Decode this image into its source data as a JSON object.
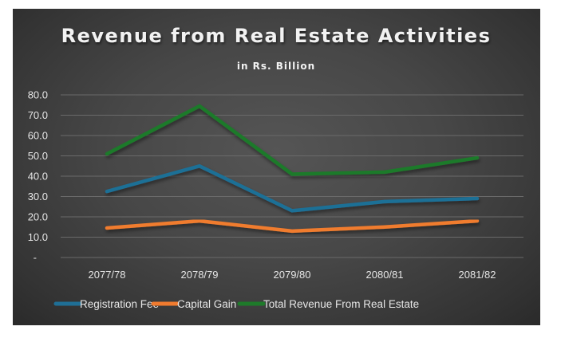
{
  "chart_data": {
    "type": "line",
    "title": "Revenue from Real Estate Activities",
    "subtitle": "in Rs. Billion",
    "xlabel": "",
    "ylabel": "",
    "categories": [
      "2077/78",
      "2078/79",
      "2079/80",
      "2080/81",
      "2081/82"
    ],
    "ylim": [
      0,
      80
    ],
    "yticks": [
      0,
      10,
      20,
      30,
      40,
      50,
      60,
      70,
      80
    ],
    "ytick_labels": [
      "-",
      "10.0",
      "20.0",
      "30.0",
      "40.0",
      "50.0",
      "60.0",
      "70.0",
      "80.0"
    ],
    "grid": true,
    "legend_position": "bottom",
    "series": [
      {
        "name": "Registration Fee",
        "color": "#1f6f96",
        "values": [
          32.5,
          45.0,
          23.0,
          27.5,
          29.0
        ]
      },
      {
        "name": "Capital Gain",
        "color": "#f07b2f",
        "values": [
          14.5,
          18.0,
          13.0,
          15.0,
          18.0
        ]
      },
      {
        "name": "Total Revenue From Real Estate",
        "color": "#1e7a2a",
        "values": [
          51.0,
          74.5,
          41.0,
          42.0,
          49.0
        ]
      }
    ]
  }
}
